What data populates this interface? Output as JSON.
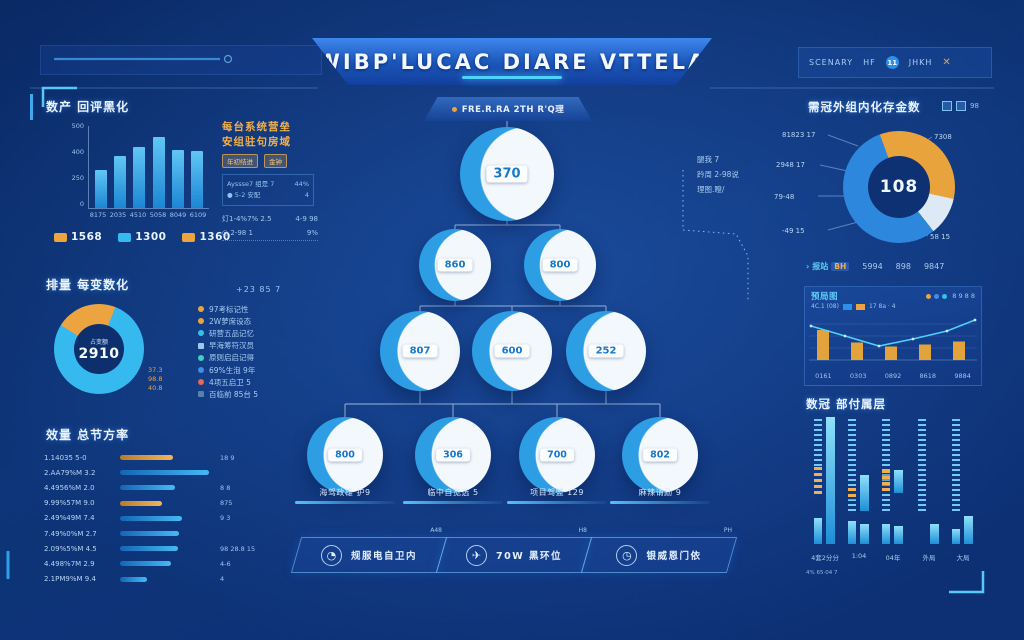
{
  "header": {
    "title": "WIBP'LUCAC DIARE VTTELA"
  },
  "toolbar": {
    "items": [
      "SCENARY",
      "HF",
      "JHKH"
    ],
    "badge": "11",
    "close": "✕"
  },
  "left_bars": {
    "title": "数产 回评黑化",
    "yticks": [
      "500",
      "400",
      "250",
      "0"
    ],
    "categories": [
      "8175",
      "2035",
      "4510",
      "5058",
      "8049",
      "6109"
    ],
    "values": [
      46,
      63,
      74,
      86,
      71,
      69
    ]
  },
  "left_stats": [
    {
      "value": "1568",
      "color": "#eba43f"
    },
    {
      "value": "1300",
      "color": "#35b9ef"
    },
    {
      "value": "1360",
      "color": "#eba43f"
    }
  ],
  "left_donut": {
    "title": "排量 每变数化",
    "center_label": "占变额",
    "center_value": "2910",
    "orange_pct": 22,
    "footnotes": [
      "37.3",
      "98.8",
      "40.8"
    ]
  },
  "left_hbars": {
    "title": "效量 总节方率",
    "rows": [
      {
        "label": "1.14035 5-0",
        "pct": 55,
        "color": "orange",
        "value": "18 9"
      },
      {
        "label": "2.AA79%M 3.2",
        "pct": 93,
        "color": "blue",
        "value": ""
      },
      {
        "label": "4.4956%M 2.0",
        "pct": 57,
        "color": "blue",
        "value": "8 8"
      },
      {
        "label": "9.99%57M 9.0",
        "pct": 44,
        "color": "orange",
        "value": "875"
      },
      {
        "label": "2.49%49M 7.4",
        "pct": 65,
        "color": "blue",
        "value": "9 3"
      },
      {
        "label": "7.49%0%M 2.7",
        "pct": 61,
        "color": "blue",
        "value": ""
      },
      {
        "label": "2.09%5%M 4.5",
        "pct": 60,
        "color": "blue",
        "value": "98 28.8 15"
      },
      {
        "label": "4.498%7M 2.9",
        "pct": 53,
        "color": "blue",
        "value": "4-6"
      },
      {
        "label": "2.1PM9%M 9.4",
        "pct": 28,
        "color": "blue",
        "value": "4"
      }
    ]
  },
  "mid_panel": {
    "heading1": "每台系统营垒",
    "heading2": "安组驻句房域",
    "chips": [
      "年初结进",
      "金钟"
    ],
    "box_rows": [
      {
        "t": "Ayssse7 组是 7",
        "v": "44%"
      },
      {
        "t": "● 5-2 安配",
        "v": "4"
      }
    ],
    "sub_rows": [
      {
        "t": "灯1-4%7% 2.5",
        "v": "4-9 98"
      },
      {
        "t": "◎ 2-98 1",
        "v": "9%"
      }
    ],
    "note": "+23 85 7",
    "legend": [
      {
        "color": "#eba43f",
        "label": "97考标记性",
        "square": false
      },
      {
        "color": "#eba43f",
        "label": "2W萝席设态",
        "square": false
      },
      {
        "color": "#35c0ee",
        "label": "研营五品记忆",
        "square": false
      },
      {
        "color": "#9fc7ee",
        "label": "早海筹符汉员",
        "square": true
      },
      {
        "color": "#3fd1c4",
        "label": "原则启启记得",
        "square": false
      },
      {
        "color": "#3f8fe8",
        "label": "69%生泡 9年",
        "square": false
      },
      {
        "color": "#e8655a",
        "label": "4项五启卫 5",
        "square": false
      },
      {
        "color": "#5a7fae",
        "label": "百临前 85台 5",
        "square": true
      }
    ]
  },
  "pyramid": {
    "banner": "FRE.R.RA 2TH R'Q理",
    "levels": [
      [
        {
          "v": "370"
        }
      ],
      [
        {
          "v": "860"
        },
        {
          "v": "800"
        }
      ],
      [
        {
          "v": "807"
        },
        {
          "v": "600"
        },
        {
          "v": "252"
        }
      ],
      [
        {
          "v": "800",
          "caption": "海驾政雄 护9"
        },
        {
          "v": "306",
          "caption": "临中自宽选 5"
        },
        {
          "v": "700",
          "caption": "项目驾盟 129"
        },
        {
          "v": "802",
          "caption": "麻辣请励 9"
        }
      ]
    ],
    "annotations": [
      "腿我 7",
      "趻周 2-98说",
      "理图.瞪/"
    ]
  },
  "buttons": [
    {
      "icon": "◔",
      "label": "规服电自卫内",
      "tag": "A48"
    },
    {
      "icon": "✈",
      "label": "70W 黑环位",
      "tag": "H8"
    },
    {
      "icon": "◷",
      "label": "银威恩门依",
      "tag": "PH"
    }
  ],
  "right_donut": {
    "title": "需冠外组内化存金数",
    "corner": "98",
    "center_value": "108",
    "callouts_left": [
      "81823 17",
      "2948 17",
      "79-48",
      "-49 15"
    ],
    "callouts_right": [
      "7308",
      "58 15"
    ],
    "slices": {
      "orange": 34,
      "white": 11,
      "blue": 55
    }
  },
  "right_tabs": [
    {
      "prefix": "›",
      "label": "报站",
      "badge": "BH",
      "active": true
    },
    {
      "prefix": "",
      "label": "5994",
      "badge": "",
      "active": false
    },
    {
      "prefix": "",
      "label": "898",
      "badge": "",
      "active": false
    },
    {
      "prefix": "",
      "label": "9847",
      "badge": "",
      "active": false
    }
  ],
  "combo": {
    "title": "预局图",
    "legend_colors": [
      "#eba43f",
      "#3f8fe8",
      "#35c0ee"
    ],
    "legend_text": "8 9 8 8",
    "sub_left": "4C.1 (08)",
    "sub_right": "17 8a · 4",
    "categories": [
      "0161",
      "0303",
      "0892",
      "8618",
      "9884"
    ],
    "bars": [
      60,
      35,
      27,
      31,
      37
    ],
    "line": [
      68,
      48,
      28,
      42,
      58,
      80
    ],
    "bar_color": "#e2a23c",
    "line_color": "#4fd0f8"
  },
  "stacks": {
    "title": "数冠 部付属层",
    "note": "4% 65·04 7",
    "groups": [
      {
        "label": "4套2分分",
        "lh": 38,
        "o_top": 40,
        "o_h": 22,
        "rtop": 1,
        "rh": 99,
        "sl": 20,
        "sr": 0
      },
      {
        "label": "1:04",
        "lh": 74,
        "o_top": 56,
        "o_h": 10,
        "rtop": 46,
        "rh": 28,
        "sl": 18,
        "sr": 16
      },
      {
        "label": "04年",
        "lh": 74,
        "o_top": 42,
        "o_h": 18,
        "rtop": 42,
        "rh": 18,
        "sl": 16,
        "sr": 14
      },
      {
        "label": "外局",
        "lh": 74,
        "o_top": 0,
        "o_h": 0,
        "rtop": 0,
        "rh": 0,
        "sl": 0,
        "sr": 16
      },
      {
        "label": "大局",
        "lh": 72,
        "o_top": 0,
        "o_h": 0,
        "rtop": 0,
        "rh": 0,
        "sl": 12,
        "sr": 22
      }
    ]
  }
}
